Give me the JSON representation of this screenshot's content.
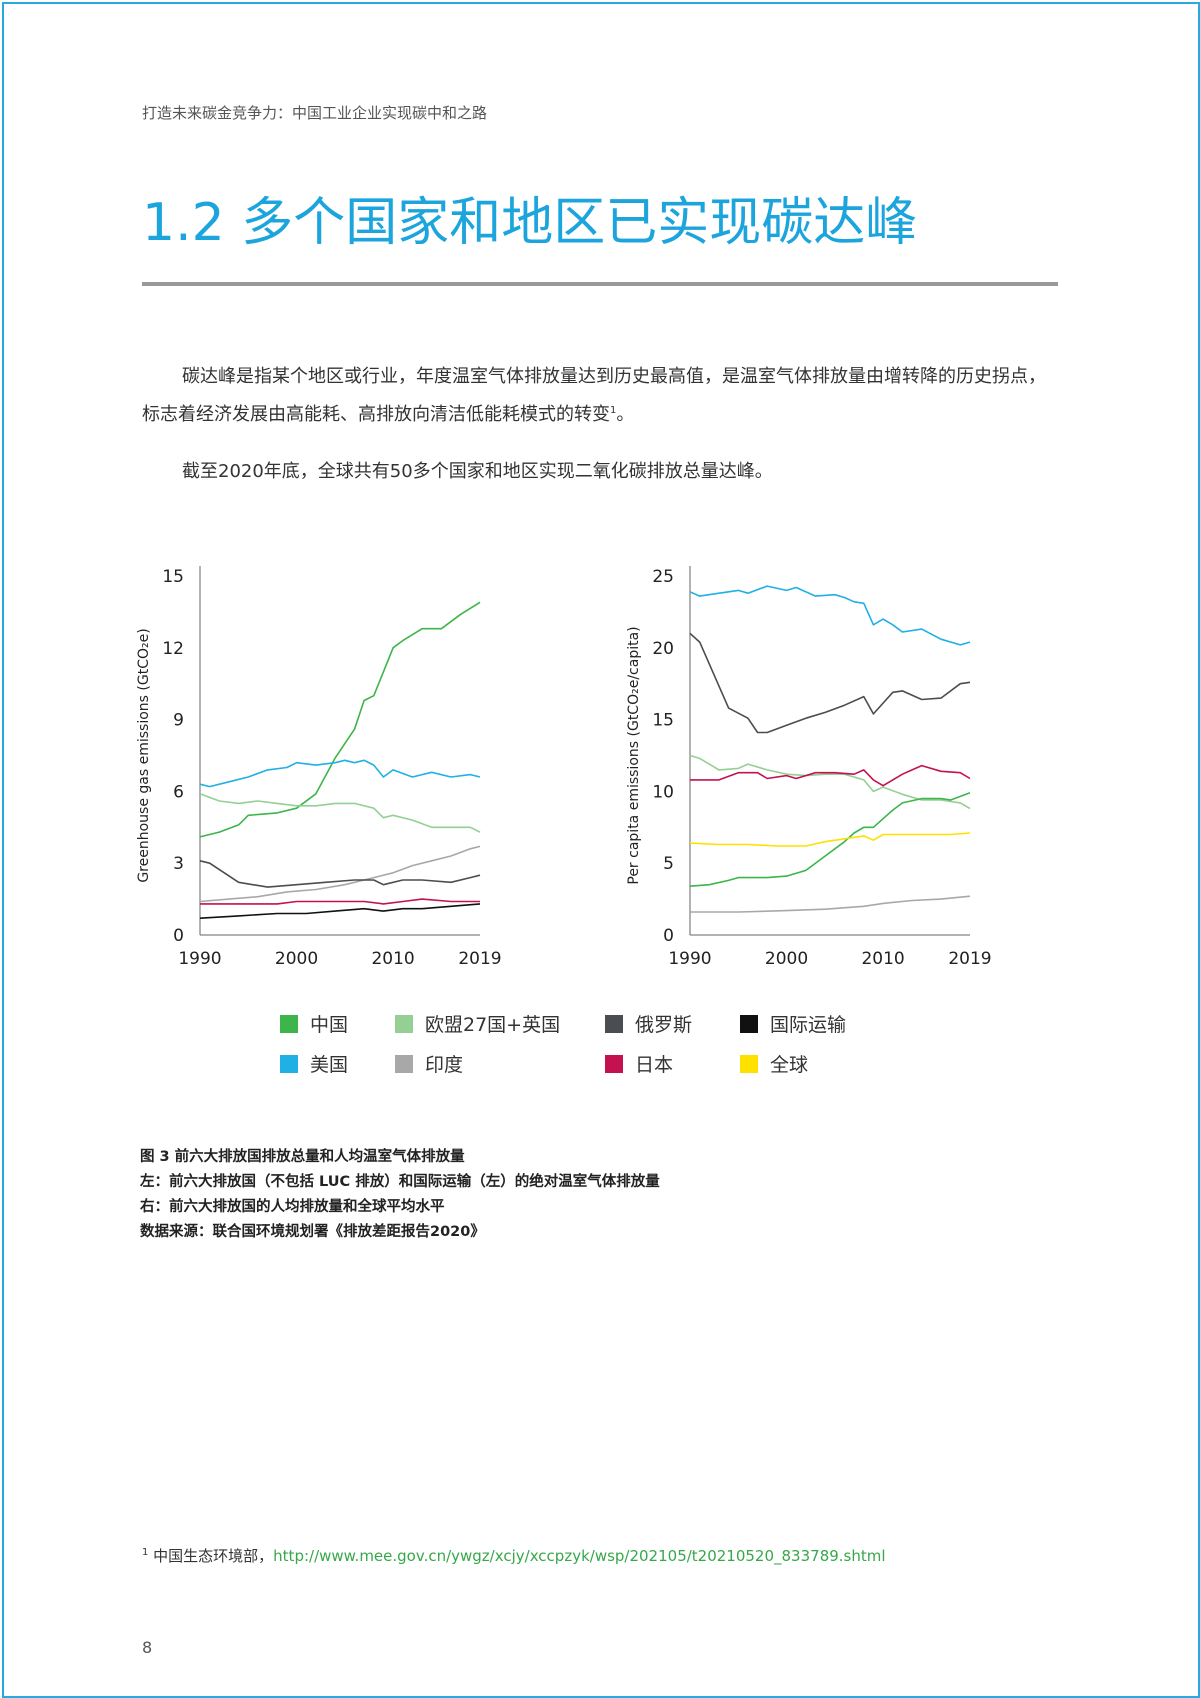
{
  "header": {
    "running_title": "打造未来碳金竞争力：中国工业企业实现碳中和之路"
  },
  "section": {
    "title": "1.2 多个国家和地区已实现碳达峰"
  },
  "body": {
    "p1": "碳达峰是指某个地区或行业，年度温室气体排放量达到历史最高值，是温室气体排放量由增转降的历史拐点，标志着经济发展由高能耗、高排放向清洁低能耗模式的转变",
    "p1_sup": "1",
    "p1_end": "。",
    "p2": "截至2020年底，全球共有50多个国家和地区实现二氧化碳排放总量达峰。"
  },
  "colors": {
    "中国": "#3cb54a",
    "美国": "#1fb0e6",
    "欧盟27国+英国": "#95cf95",
    "印度": "#a8a8a8",
    "俄罗斯": "#4a4d52",
    "日本": "#c3124f",
    "国际运输": "#111111",
    "全球": "#ffe100"
  },
  "chart_data": [
    {
      "type": "line",
      "ylabel": "Greenhouse gas emissions (GtCO₂e)",
      "yticks": [
        "0",
        "3",
        "6",
        "9",
        "12",
        "15"
      ],
      "xticks": [
        "1990",
        "2000",
        "2010",
        "2019"
      ],
      "ylim": [
        0,
        15
      ],
      "xlim": [
        1990,
        2019
      ],
      "series": [
        {
          "name": "中国",
          "points": [
            [
              1990,
              4.1
            ],
            [
              1992,
              4.3
            ],
            [
              1994,
              4.6
            ],
            [
              1995,
              5.0
            ],
            [
              1998,
              5.1
            ],
            [
              2000,
              5.3
            ],
            [
              2002,
              5.9
            ],
            [
              2004,
              7.4
            ],
            [
              2006,
              8.6
            ],
            [
              2007,
              9.8
            ],
            [
              2008,
              10.0
            ],
            [
              2010,
              12.0
            ],
            [
              2011,
              12.3
            ],
            [
              2013,
              12.8
            ],
            [
              2015,
              12.8
            ],
            [
              2017,
              13.4
            ],
            [
              2019,
              13.9
            ]
          ]
        },
        {
          "name": "美国",
          "points": [
            [
              1990,
              6.3
            ],
            [
              1991,
              6.2
            ],
            [
              1993,
              6.4
            ],
            [
              1995,
              6.6
            ],
            [
              1997,
              6.9
            ],
            [
              1999,
              7.0
            ],
            [
              2000,
              7.2
            ],
            [
              2002,
              7.1
            ],
            [
              2004,
              7.2
            ],
            [
              2005,
              7.3
            ],
            [
              2006,
              7.2
            ],
            [
              2007,
              7.3
            ],
            [
              2008,
              7.1
            ],
            [
              2009,
              6.6
            ],
            [
              2010,
              6.9
            ],
            [
              2012,
              6.6
            ],
            [
              2014,
              6.8
            ],
            [
              2016,
              6.6
            ],
            [
              2018,
              6.7
            ],
            [
              2019,
              6.6
            ]
          ]
        },
        {
          "name": "欧盟27国+英国",
          "points": [
            [
              1990,
              5.9
            ],
            [
              1992,
              5.6
            ],
            [
              1994,
              5.5
            ],
            [
              1996,
              5.6
            ],
            [
              1998,
              5.5
            ],
            [
              2000,
              5.4
            ],
            [
              2002,
              5.4
            ],
            [
              2004,
              5.5
            ],
            [
              2006,
              5.5
            ],
            [
              2008,
              5.3
            ],
            [
              2009,
              4.9
            ],
            [
              2010,
              5.0
            ],
            [
              2012,
              4.8
            ],
            [
              2014,
              4.5
            ],
            [
              2016,
              4.5
            ],
            [
              2018,
              4.5
            ],
            [
              2019,
              4.3
            ]
          ]
        },
        {
          "name": "印度",
          "points": [
            [
              1990,
              1.4
            ],
            [
              1993,
              1.5
            ],
            [
              1996,
              1.6
            ],
            [
              1999,
              1.8
            ],
            [
              2002,
              1.9
            ],
            [
              2005,
              2.1
            ],
            [
              2008,
              2.4
            ],
            [
              2010,
              2.6
            ],
            [
              2012,
              2.9
            ],
            [
              2014,
              3.1
            ],
            [
              2016,
              3.3
            ],
            [
              2018,
              3.6
            ],
            [
              2019,
              3.7
            ]
          ]
        },
        {
          "name": "俄罗斯",
          "points": [
            [
              1990,
              3.1
            ],
            [
              1991,
              3.0
            ],
            [
              1994,
              2.2
            ],
            [
              1997,
              2.0
            ],
            [
              2000,
              2.1
            ],
            [
              2003,
              2.2
            ],
            [
              2006,
              2.3
            ],
            [
              2008,
              2.3
            ],
            [
              2009,
              2.1
            ],
            [
              2011,
              2.3
            ],
            [
              2013,
              2.3
            ],
            [
              2016,
              2.2
            ],
            [
              2018,
              2.4
            ],
            [
              2019,
              2.5
            ]
          ]
        },
        {
          "name": "日本",
          "points": [
            [
              1990,
              1.3
            ],
            [
              1994,
              1.3
            ],
            [
              1998,
              1.3
            ],
            [
              2000,
              1.4
            ],
            [
              2004,
              1.4
            ],
            [
              2007,
              1.4
            ],
            [
              2009,
              1.3
            ],
            [
              2011,
              1.4
            ],
            [
              2013,
              1.5
            ],
            [
              2016,
              1.4
            ],
            [
              2019,
              1.4
            ]
          ]
        },
        {
          "name": "国际运输",
          "points": [
            [
              1990,
              0.7
            ],
            [
              1994,
              0.8
            ],
            [
              1998,
              0.9
            ],
            [
              2001,
              0.9
            ],
            [
              2004,
              1.0
            ],
            [
              2007,
              1.1
            ],
            [
              2009,
              1.0
            ],
            [
              2011,
              1.1
            ],
            [
              2013,
              1.1
            ],
            [
              2016,
              1.2
            ],
            [
              2019,
              1.3
            ]
          ]
        }
      ]
    },
    {
      "type": "line",
      "ylabel": "Per capita emissions (GtCO₂e/capita)",
      "yticks": [
        "0",
        "5",
        "10",
        "15",
        "20",
        "25"
      ],
      "xticks": [
        "1990",
        "2000",
        "2010",
        "2019"
      ],
      "ylim": [
        0,
        25
      ],
      "xlim": [
        1990,
        2019
      ],
      "series": [
        {
          "name": "美国",
          "points": [
            [
              1990,
              23.9
            ],
            [
              1991,
              23.6
            ],
            [
              1993,
              23.8
            ],
            [
              1995,
              24.0
            ],
            [
              1996,
              23.8
            ],
            [
              1998,
              24.3
            ],
            [
              2000,
              24.0
            ],
            [
              2001,
              24.2
            ],
            [
              2003,
              23.6
            ],
            [
              2005,
              23.7
            ],
            [
              2006,
              23.5
            ],
            [
              2007,
              23.2
            ],
            [
              2008,
              23.1
            ],
            [
              2009,
              21.6
            ],
            [
              2010,
              22.0
            ],
            [
              2011,
              21.6
            ],
            [
              2012,
              21.1
            ],
            [
              2014,
              21.3
            ],
            [
              2016,
              20.6
            ],
            [
              2018,
              20.2
            ],
            [
              2019,
              20.4
            ]
          ]
        },
        {
          "name": "俄罗斯",
          "points": [
            [
              1990,
              21.0
            ],
            [
              1991,
              20.4
            ],
            [
              1994,
              15.8
            ],
            [
              1996,
              15.1
            ],
            [
              1997,
              14.1
            ],
            [
              1998,
              14.1
            ],
            [
              2000,
              14.6
            ],
            [
              2002,
              15.1
            ],
            [
              2004,
              15.5
            ],
            [
              2006,
              16.0
            ],
            [
              2008,
              16.6
            ],
            [
              2009,
              15.4
            ],
            [
              2011,
              16.9
            ],
            [
              2012,
              17.0
            ],
            [
              2014,
              16.4
            ],
            [
              2016,
              16.5
            ],
            [
              2018,
              17.5
            ],
            [
              2019,
              17.6
            ]
          ]
        },
        {
          "name": "欧盟27国+英国",
          "points": [
            [
              1990,
              12.5
            ],
            [
              1991,
              12.3
            ],
            [
              1993,
              11.5
            ],
            [
              1995,
              11.6
            ],
            [
              1996,
              11.9
            ],
            [
              1998,
              11.5
            ],
            [
              2000,
              11.2
            ],
            [
              2002,
              11.1
            ],
            [
              2004,
              11.2
            ],
            [
              2006,
              11.2
            ],
            [
              2008,
              10.8
            ],
            [
              2009,
              10.0
            ],
            [
              2010,
              10.3
            ],
            [
              2012,
              9.8
            ],
            [
              2014,
              9.4
            ],
            [
              2016,
              9.4
            ],
            [
              2018,
              9.2
            ],
            [
              2019,
              8.8
            ]
          ]
        },
        {
          "name": "日本",
          "points": [
            [
              1990,
              10.8
            ],
            [
              1993,
              10.8
            ],
            [
              1995,
              11.3
            ],
            [
              1997,
              11.3
            ],
            [
              1998,
              10.9
            ],
            [
              2000,
              11.1
            ],
            [
              2001,
              10.9
            ],
            [
              2003,
              11.3
            ],
            [
              2005,
              11.3
            ],
            [
              2007,
              11.2
            ],
            [
              2008,
              11.5
            ],
            [
              2009,
              10.8
            ],
            [
              2010,
              10.4
            ],
            [
              2012,
              11.2
            ],
            [
              2013,
              11.5
            ],
            [
              2014,
              11.8
            ],
            [
              2016,
              11.4
            ],
            [
              2018,
              11.3
            ],
            [
              2019,
              10.9
            ]
          ]
        },
        {
          "name": "中国",
          "points": [
            [
              1990,
              3.4
            ],
            [
              1992,
              3.5
            ],
            [
              1994,
              3.8
            ],
            [
              1995,
              4.0
            ],
            [
              1998,
              4.0
            ],
            [
              2000,
              4.1
            ],
            [
              2002,
              4.5
            ],
            [
              2004,
              5.5
            ],
            [
              2006,
              6.5
            ],
            [
              2007,
              7.1
            ],
            [
              2008,
              7.5
            ],
            [
              2009,
              7.5
            ],
            [
              2011,
              8.7
            ],
            [
              2012,
              9.2
            ],
            [
              2014,
              9.5
            ],
            [
              2016,
              9.5
            ],
            [
              2017,
              9.4
            ],
            [
              2019,
              9.9
            ]
          ]
        },
        {
          "name": "全球",
          "points": [
            [
              1990,
              6.4
            ],
            [
              1993,
              6.3
            ],
            [
              1996,
              6.3
            ],
            [
              1999,
              6.2
            ],
            [
              2002,
              6.2
            ],
            [
              2004,
              6.5
            ],
            [
              2006,
              6.7
            ],
            [
              2008,
              6.9
            ],
            [
              2009,
              6.6
            ],
            [
              2010,
              7.0
            ],
            [
              2012,
              7.0
            ],
            [
              2015,
              7.0
            ],
            [
              2017,
              7.0
            ],
            [
              2019,
              7.1
            ]
          ]
        },
        {
          "name": "印度",
          "points": [
            [
              1990,
              1.6
            ],
            [
              1995,
              1.6
            ],
            [
              2000,
              1.7
            ],
            [
              2004,
              1.8
            ],
            [
              2008,
              2.0
            ],
            [
              2010,
              2.2
            ],
            [
              2013,
              2.4
            ],
            [
              2016,
              2.5
            ],
            [
              2019,
              2.7
            ]
          ]
        }
      ]
    }
  ],
  "legend": [
    {
      "label": "中国",
      "color": "#3cb54a"
    },
    {
      "label": "欧盟27国+英国",
      "color": "#95cf95"
    },
    {
      "label": "俄罗斯",
      "color": "#4a4d52"
    },
    {
      "label": "国际运输",
      "color": "#111111"
    },
    {
      "label": "美国",
      "color": "#1fb0e6"
    },
    {
      "label": "印度",
      "color": "#a8a8a8"
    },
    {
      "label": "日本",
      "color": "#c3124f"
    },
    {
      "label": "全球",
      "color": "#ffe100"
    }
  ],
  "caption": {
    "line1": "图 3 前六大排放国排放总量和人均温室气体排放量",
    "line2": "左：前六大排放国（不包括 LUC 排放）和国际运输（左）的绝对温室气体排放量",
    "line3": "右：前六大排放国的人均排放量和全球平均水平",
    "line4": "数据来源：联合国环境规划署《排放差距报告2020》"
  },
  "footnote": {
    "marker": "1",
    "text": "中国生态环境部，",
    "link": "http://www.mee.gov.cn/ywgz/xcjy/xccpzyk/wsp/202105/t20210520_833789.shtml"
  },
  "page_number": "8"
}
